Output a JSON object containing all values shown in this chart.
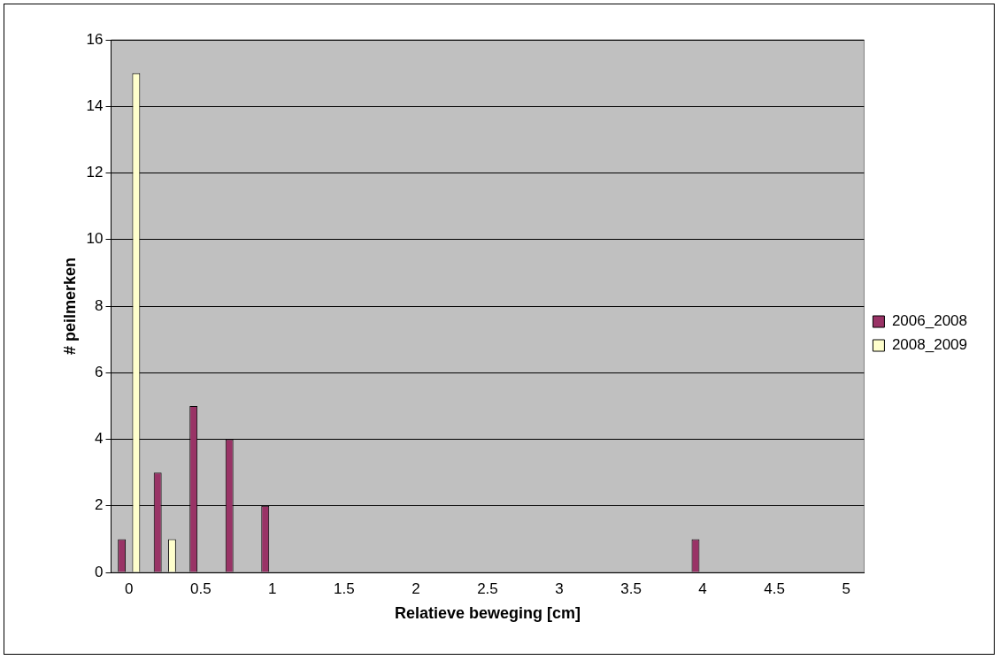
{
  "chart_data": {
    "type": "bar",
    "xlabel": "Relatieve beweging [cm]",
    "ylabel": "# peilmerken",
    "categories": [
      "0",
      null,
      "0.5",
      null,
      "1",
      null,
      "1.5",
      null,
      "2",
      null,
      "2.5",
      null,
      "3",
      null,
      "3.5",
      null,
      "4",
      null,
      "4.5",
      null,
      "5"
    ],
    "series": [
      {
        "name": "2006_2008",
        "color": "#993366",
        "values": [
          1,
          3,
          5,
          4,
          2,
          0,
          0,
          0,
          0,
          0,
          0,
          0,
          0,
          0,
          0,
          0,
          1,
          0,
          0,
          0,
          0
        ]
      },
      {
        "name": "2008_2009",
        "color": "#ffffcc",
        "values": [
          15,
          1,
          0,
          0,
          0,
          0,
          0,
          0,
          0,
          0,
          0,
          0,
          0,
          0,
          0,
          0,
          0,
          0,
          0,
          0,
          0
        ]
      }
    ],
    "ylim": [
      0,
      16
    ],
    "yticks": [
      0,
      2,
      4,
      6,
      8,
      10,
      12,
      14,
      16
    ],
    "grid": "y",
    "legend": "right"
  }
}
